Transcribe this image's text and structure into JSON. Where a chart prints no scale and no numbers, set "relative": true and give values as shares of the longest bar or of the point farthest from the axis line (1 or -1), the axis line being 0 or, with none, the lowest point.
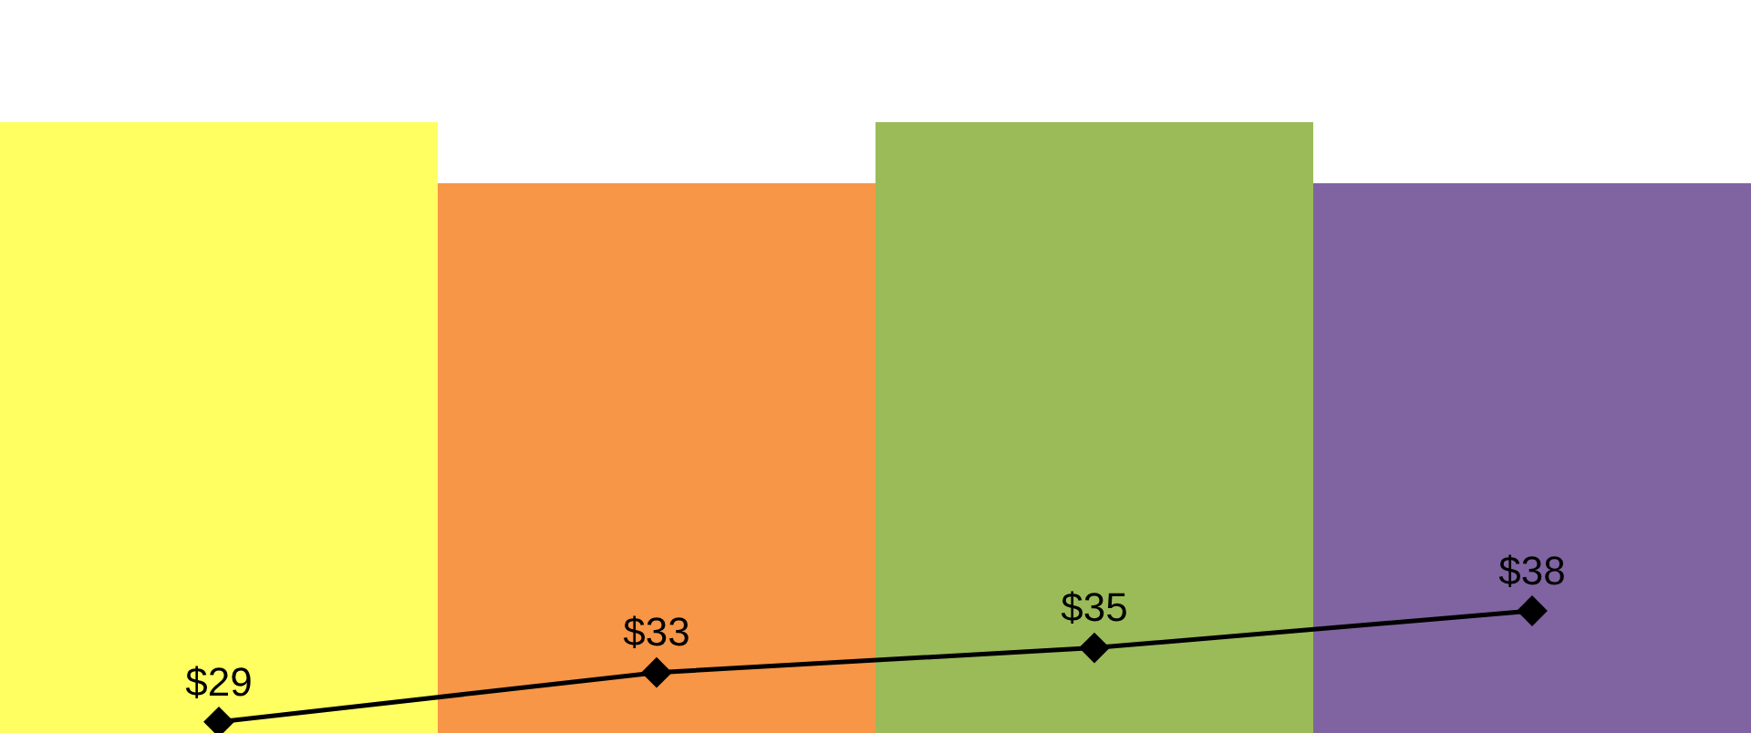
{
  "chart_data": [
    {
      "type": "bar",
      "relative": true,
      "categories": [
        null,
        null,
        null,
        null
      ],
      "colors": [
        "#ffff62",
        "#f79646",
        "#9bbb59",
        "#8064a2"
      ],
      "values": [
        1,
        0.9,
        1,
        0.9
      ]
    },
    {
      "type": "line",
      "categories": [
        null,
        null,
        null,
        null
      ],
      "color": "#000000",
      "marker": "diamond",
      "line_style": "solid",
      "values": [
        29,
        33,
        35,
        38
      ],
      "value_labels": [
        "$29",
        "$33",
        "$35",
        "$38"
      ]
    }
  ]
}
